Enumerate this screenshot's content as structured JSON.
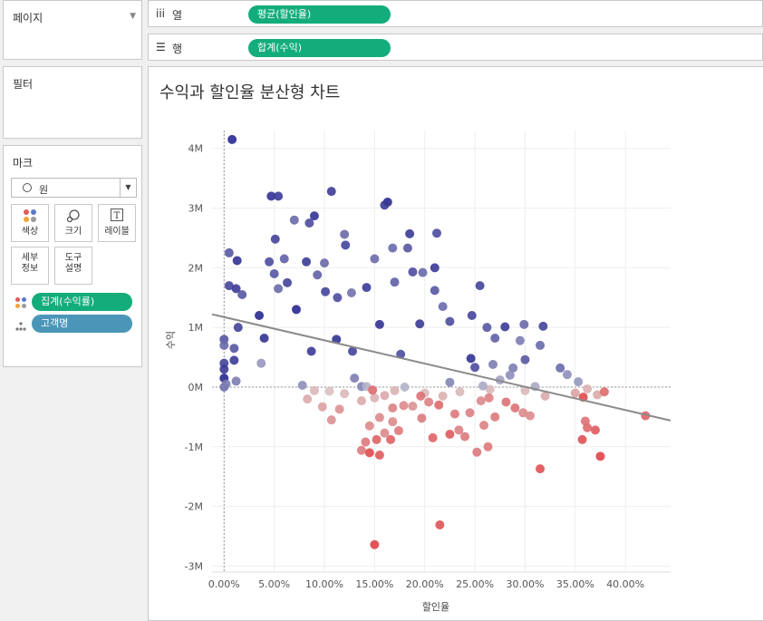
{
  "pages": {
    "title": "페이지"
  },
  "filters": {
    "title": "필터"
  },
  "marks": {
    "title": "마크",
    "mark_type": "원",
    "buttons": {
      "color": "색상",
      "size": "크기",
      "label": "레이블",
      "detail_1": "세부",
      "detail_2": "정보",
      "tooltip_1": "도구",
      "tooltip_2": "설명"
    },
    "fields": [
      {
        "label": "집계(수익률)",
        "color": "#13ad7c"
      },
      {
        "label": "고객명",
        "color": "#4b96b8"
      }
    ]
  },
  "shelves": {
    "columns": {
      "label": "열",
      "pill": "평균(할인율)"
    },
    "rows": {
      "label": "행",
      "pill": "합계(수익)"
    }
  },
  "chart_data": {
    "type": "scatter",
    "title": "수익과 할인율 분산형 차트",
    "xlabel": "할인율",
    "ylabel": "수익",
    "xlim": [
      -0.012,
      0.445
    ],
    "ylim": [
      -3100000,
      4300000
    ],
    "x_ticks": [
      0,
      0.05,
      0.1,
      0.15,
      0.2,
      0.25,
      0.3,
      0.35,
      0.4
    ],
    "x_tick_labels": [
      "0.00%",
      "5.00%",
      "10.00%",
      "15.00%",
      "20.00%",
      "25.00%",
      "30.00%",
      "35.00%",
      "40.00%"
    ],
    "y_ticks": [
      4000000,
      3000000,
      2000000,
      1000000,
      0,
      -1000000,
      -2000000,
      -3000000
    ],
    "y_tick_labels": [
      "4M",
      "3M",
      "2M",
      "1M",
      "0M",
      "-1M",
      "-2M",
      "-3M"
    ],
    "grid": true,
    "color_scale": {
      "negative": "#e03a3e",
      "neutral": "#d8d8d8",
      "positive": "#1f1f8c"
    },
    "trend_line": {
      "x": [
        -0.012,
        0.445
      ],
      "y": [
        1220000,
        -560000
      ],
      "color": "#8a8a8a"
    },
    "points": [
      [
        0.008,
        4150000,
        0.95
      ],
      [
        0.005,
        2250000,
        0.7
      ],
      [
        0.013,
        2120000,
        0.9
      ],
      [
        0.005,
        1700000,
        0.8
      ],
      [
        0.012,
        1650000,
        0.85
      ],
      [
        0.018,
        1550000,
        0.7
      ],
      [
        0.0,
        800000,
        0.7
      ],
      [
        0.0,
        700000,
        0.6
      ],
      [
        0.0,
        400000,
        0.8
      ],
      [
        0.0,
        300000,
        0.85
      ],
      [
        0.0,
        150000,
        0.95
      ],
      [
        0.0,
        0,
        0.55
      ],
      [
        0.002,
        50000,
        0.5
      ],
      [
        0.01,
        450000,
        0.85
      ],
      [
        0.01,
        650000,
        0.7
      ],
      [
        0.014,
        1000000,
        0.8
      ],
      [
        0.047,
        3200000,
        0.9
      ],
      [
        0.054,
        3200000,
        0.85
      ],
      [
        0.051,
        2480000,
        0.8
      ],
      [
        0.06,
        2150000,
        0.65
      ],
      [
        0.045,
        2100000,
        0.75
      ],
      [
        0.05,
        1900000,
        0.7
      ],
      [
        0.063,
        1750000,
        0.8
      ],
      [
        0.054,
        1650000,
        0.6
      ],
      [
        0.07,
        2800000,
        0.6
      ],
      [
        0.085,
        2750000,
        0.75
      ],
      [
        0.09,
        2870000,
        0.9
      ],
      [
        0.107,
        3280000,
        0.85
      ],
      [
        0.082,
        2100000,
        0.85
      ],
      [
        0.093,
        1880000,
        0.65
      ],
      [
        0.101,
        1600000,
        0.8
      ],
      [
        0.113,
        1500000,
        0.75
      ],
      [
        0.1,
        2080000,
        0.6
      ],
      [
        0.12,
        2560000,
        0.6
      ],
      [
        0.121,
        2380000,
        0.8
      ],
      [
        0.15,
        2150000,
        0.6
      ],
      [
        0.168,
        2330000,
        0.6
      ],
      [
        0.163,
        3100000,
        0.95
      ],
      [
        0.16,
        3050000,
        0.85
      ],
      [
        0.185,
        2570000,
        0.85
      ],
      [
        0.183,
        2330000,
        0.7
      ],
      [
        0.212,
        2580000,
        0.75
      ],
      [
        0.188,
        1930000,
        0.75
      ],
      [
        0.198,
        1920000,
        0.6
      ],
      [
        0.21,
        2000000,
        0.85
      ],
      [
        0.17,
        1760000,
        0.65
      ],
      [
        0.142,
        1670000,
        0.85
      ],
      [
        0.127,
        1580000,
        0.55
      ],
      [
        0.255,
        1700000,
        0.8
      ],
      [
        0.247,
        1200000,
        0.8
      ],
      [
        0.21,
        1620000,
        0.7
      ],
      [
        0.218,
        1350000,
        0.6
      ],
      [
        0.28,
        1010000,
        0.85
      ],
      [
        0.299,
        1050000,
        0.6
      ],
      [
        0.318,
        1020000,
        0.8
      ],
      [
        0.262,
        1000000,
        0.7
      ],
      [
        0.27,
        820000,
        0.65
      ],
      [
        0.295,
        780000,
        0.5
      ],
      [
        0.225,
        1100000,
        0.75
      ],
      [
        0.195,
        1060000,
        0.85
      ],
      [
        0.288,
        320000,
        0.5
      ],
      [
        0.315,
        700000,
        0.6
      ],
      [
        0.3,
        460000,
        0.7
      ],
      [
        0.335,
        320000,
        0.6
      ],
      [
        0.342,
        210000,
        0.4
      ],
      [
        0.353,
        90000,
        0.35
      ],
      [
        0.037,
        400000,
        0.35
      ],
      [
        0.012,
        100000,
        0.5
      ],
      [
        0.078,
        30000,
        0.4
      ],
      [
        0.13,
        150000,
        0.5
      ],
      [
        0.137,
        10000,
        0.45
      ],
      [
        0.155,
        1050000,
        0.9
      ],
      [
        0.112,
        800000,
        0.9
      ],
      [
        0.072,
        1300000,
        0.95
      ],
      [
        0.035,
        1200000,
        0.95
      ],
      [
        0.04,
        820000,
        0.9
      ],
      [
        0.087,
        600000,
        0.85
      ],
      [
        0.128,
        600000,
        0.8
      ],
      [
        0.176,
        550000,
        0.75
      ],
      [
        0.246,
        480000,
        0.9
      ],
      [
        0.25,
        330000,
        0.75
      ],
      [
        0.268,
        380000,
        0.5
      ],
      [
        0.285,
        200000,
        0.4
      ],
      [
        0.32,
        -150000,
        -0.3
      ],
      [
        0.35,
        -100000,
        -0.35
      ],
      [
        0.362,
        -30000,
        -0.25
      ],
      [
        0.372,
        -130000,
        -0.3
      ],
      [
        0.225,
        80000,
        0.45
      ],
      [
        0.235,
        -80000,
        -0.2
      ],
      [
        0.218,
        -150000,
        -0.25
      ],
      [
        0.2,
        -100000,
        -0.2
      ],
      [
        0.18,
        0,
        0.2
      ],
      [
        0.17,
        -60000,
        -0.25
      ],
      [
        0.16,
        -140000,
        -0.3
      ],
      [
        0.15,
        -180000,
        -0.25
      ],
      [
        0.137,
        -230000,
        -0.3
      ],
      [
        0.12,
        -110000,
        -0.2
      ],
      [
        0.105,
        -70000,
        -0.15
      ],
      [
        0.09,
        -60000,
        -0.2
      ],
      [
        0.142,
        10000,
        0.2
      ],
      [
        0.265,
        -40000,
        -0.2
      ],
      [
        0.258,
        20000,
        0.25
      ],
      [
        0.275,
        120000,
        0.3
      ],
      [
        0.3,
        -60000,
        -0.2
      ],
      [
        0.31,
        10000,
        0.25
      ],
      [
        0.148,
        -50000,
        -0.7
      ],
      [
        0.179,
        -310000,
        -0.5
      ],
      [
        0.168,
        -350000,
        -0.55
      ],
      [
        0.188,
        -320000,
        -0.45
      ],
      [
        0.196,
        -150000,
        -0.65
      ],
      [
        0.204,
        -250000,
        -0.55
      ],
      [
        0.214,
        -300000,
        -0.7
      ],
      [
        0.23,
        -450000,
        -0.6
      ],
      [
        0.245,
        -430000,
        -0.55
      ],
      [
        0.256,
        -230000,
        -0.5
      ],
      [
        0.264,
        -180000,
        -0.55
      ],
      [
        0.281,
        -250000,
        -0.65
      ],
      [
        0.29,
        -350000,
        -0.65
      ],
      [
        0.298,
        -430000,
        -0.5
      ],
      [
        0.305,
        -480000,
        -0.5
      ],
      [
        0.234,
        -720000,
        -0.55
      ],
      [
        0.24,
        -830000,
        -0.6
      ],
      [
        0.259,
        -640000,
        -0.55
      ],
      [
        0.27,
        -500000,
        -0.6
      ],
      [
        0.197,
        -520000,
        -0.6
      ],
      [
        0.168,
        -580000,
        -0.5
      ],
      [
        0.155,
        -510000,
        -0.5
      ],
      [
        0.145,
        -650000,
        -0.5
      ],
      [
        0.16,
        -770000,
        -0.5
      ],
      [
        0.174,
        -730000,
        -0.6
      ],
      [
        0.115,
        -370000,
        -0.45
      ],
      [
        0.107,
        -550000,
        -0.45
      ],
      [
        0.098,
        -330000,
        -0.35
      ],
      [
        0.083,
        -200000,
        -0.3
      ],
      [
        0.145,
        -1100000,
        -0.9
      ],
      [
        0.155,
        -1140000,
        -0.8
      ],
      [
        0.152,
        -880000,
        -0.75
      ],
      [
        0.166,
        -880000,
        -0.75
      ],
      [
        0.141,
        -920000,
        -0.6
      ],
      [
        0.137,
        -1060000,
        -0.6
      ],
      [
        0.208,
        -850000,
        -0.75
      ],
      [
        0.225,
        -790000,
        -0.8
      ],
      [
        0.252,
        -1090000,
        -0.6
      ],
      [
        0.263,
        -1000000,
        -0.6
      ],
      [
        0.315,
        -1370000,
        -0.85
      ],
      [
        0.357,
        -880000,
        -0.85
      ],
      [
        0.362,
        -680000,
        -0.7
      ],
      [
        0.36,
        -570000,
        -0.65
      ],
      [
        0.37,
        -720000,
        -0.8
      ],
      [
        0.375,
        -1160000,
        -0.95
      ],
      [
        0.358,
        -170000,
        -0.9
      ],
      [
        0.379,
        -80000,
        -0.7
      ],
      [
        0.42,
        -480000,
        -0.75
      ],
      [
        0.15,
        -2640000,
        -0.95
      ],
      [
        0.215,
        -2310000,
        -0.85
      ]
    ]
  }
}
